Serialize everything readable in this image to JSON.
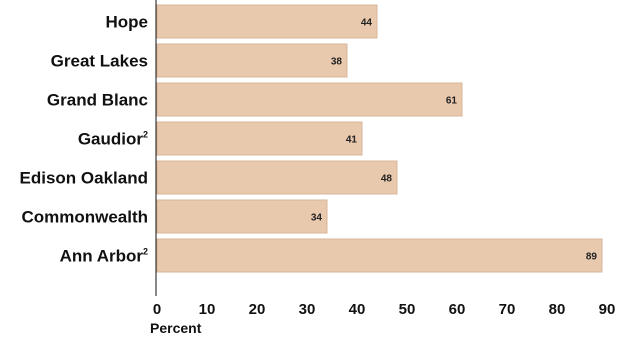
{
  "chart_data": {
    "type": "bar",
    "orientation": "horizontal",
    "categories": [
      "Hope",
      "Great Lakes",
      "Grand Blanc",
      "Gaudior",
      "Edison Oakland",
      "Commonwealth",
      "Ann Arbor"
    ],
    "category_superscripts": [
      "",
      "",
      "",
      "2",
      "",
      "",
      "2"
    ],
    "values": [
      44,
      38,
      61,
      41,
      48,
      34,
      89
    ],
    "data_labels": [
      "44",
      "38",
      "61",
      "41",
      "48",
      "34",
      "89"
    ],
    "xlabel": "Percent",
    "xlim": [
      0,
      90
    ],
    "xticks": [
      0,
      10,
      20,
      30,
      40,
      50,
      60,
      70,
      80,
      90
    ],
    "xtick_labels": [
      "0",
      "10",
      "20",
      "30",
      "40",
      "50",
      "60",
      "70",
      "80",
      "90"
    ],
    "grid": false,
    "bar_color": "#e8c9ad"
  }
}
